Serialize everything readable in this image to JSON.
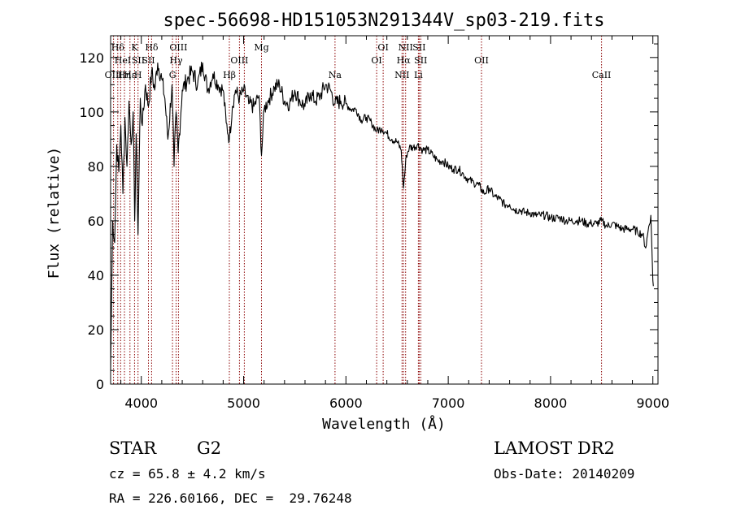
{
  "chart_data": {
    "type": "line",
    "title": "spec-56698-HD151053N291344V_sp03-219.fits",
    "xlabel": "Wavelength (Å)",
    "ylabel": "Flux (relative)",
    "xlim": [
      3700,
      9050
    ],
    "ylim": [
      0,
      128
    ],
    "x_ticks": [
      4000,
      5000,
      6000,
      7000,
      8000,
      9000
    ],
    "y_ticks": [
      0,
      20,
      40,
      60,
      80,
      100,
      120
    ],
    "grid": false,
    "line_color": "#000000",
    "marker_color": "#8b0000",
    "series": [
      {
        "x": [
          3700,
          3720,
          3740,
          3760,
          3780,
          3800,
          3820,
          3840,
          3860,
          3880,
          3900,
          3920,
          3935,
          3950,
          3968,
          3990,
          4010,
          4040,
          4070,
          4101,
          4130,
          4160,
          4200,
          4230,
          4260,
          4300,
          4320,
          4340,
          4360,
          4400,
          4450,
          4500,
          4550,
          4600,
          4650,
          4700,
          4750,
          4800,
          4830,
          4861,
          4890,
          4920,
          4960,
          5000,
          5050,
          5100,
          5150,
          5175,
          5200,
          5250,
          5300,
          5350,
          5400,
          5450,
          5500,
          5550,
          5600,
          5650,
          5700,
          5750,
          5800,
          5850,
          5893,
          5950,
          6000,
          6050,
          6100,
          6150,
          6200,
          6250,
          6300,
          6350,
          6400,
          6450,
          6500,
          6540,
          6563,
          6590,
          6620,
          6660,
          6700,
          6750,
          6800,
          6850,
          6900,
          6950,
          7000,
          7050,
          7100,
          7150,
          7200,
          7250,
          7300,
          7350,
          7400,
          7450,
          7500,
          7550,
          7600,
          7650,
          7700,
          7750,
          7800,
          7850,
          7900,
          7950,
          8000,
          8050,
          8100,
          8150,
          8200,
          8250,
          8300,
          8350,
          8400,
          8450,
          8500,
          8550,
          8600,
          8650,
          8700,
          8750,
          8800,
          8850,
          8900,
          8930,
          8960,
          8980,
          9000,
          9005
        ],
        "y": [
          5,
          60,
          52,
          88,
          78,
          95,
          70,
          98,
          80,
          104,
          88,
          100,
          60,
          92,
          55,
          105,
          95,
          110,
          102,
          115,
          108,
          118,
          112,
          105,
          90,
          110,
          80,
          100,
          85,
          108,
          112,
          115,
          110,
          118,
          108,
          114,
          110,
          108,
          96,
          90,
          102,
          108,
          105,
          108,
          103,
          102,
          106,
          84,
          101,
          105,
          109,
          110,
          104,
          103,
          108,
          104,
          102,
          107,
          104,
          106,
          110,
          108,
          103,
          104,
          103,
          101,
          101,
          97,
          98,
          96,
          93,
          94,
          92,
          90,
          89,
          86,
          72,
          84,
          87,
          87,
          88,
          86,
          86,
          84,
          82,
          82,
          80,
          79,
          79,
          77,
          75,
          74,
          73,
          70,
          72,
          69,
          68,
          66,
          66,
          64,
          64,
          63,
          63,
          62,
          62,
          62,
          61,
          61,
          61,
          60,
          60,
          60,
          60,
          59,
          59,
          59,
          60,
          58,
          59,
          58,
          57,
          57,
          57,
          56,
          55,
          50,
          58,
          62,
          38,
          36
        ]
      }
    ],
    "line_markers": [
      {
        "label": "Hδ",
        "wl": 3770,
        "row": 0
      },
      {
        "label": "HeI",
        "wl": 3819,
        "row": 1
      },
      {
        "label": "OIII",
        "wl": 3729,
        "row": 2
      },
      {
        "label": "Hη",
        "wl": 3835,
        "row": 2
      },
      {
        "label": "K",
        "wl": 3934,
        "row": 0
      },
      {
        "label": "SII",
        "wl": 3970,
        "row": 1
      },
      {
        "label": "Hε",
        "wl": 3889,
        "row": 2
      },
      {
        "label": "Hδ",
        "wl": 4101,
        "row": 0
      },
      {
        "label": "SII",
        "wl": 4070,
        "row": 1
      },
      {
        "label": "H",
        "wl": 3968,
        "row": 2
      },
      {
        "label": "OIII",
        "wl": 4363,
        "row": 0
      },
      {
        "label": "Hγ",
        "wl": 4340,
        "row": 1
      },
      {
        "label": "G",
        "wl": 4305,
        "row": 2
      },
      {
        "label": "OIII",
        "wl": 4959,
        "row": 1
      },
      {
        "label": "Hβ",
        "wl": 4861,
        "row": 2
      },
      {
        "label": "Mg",
        "wl": 5175,
        "row": 0
      },
      {
        "label": "Na",
        "wl": 5893,
        "row": 2
      },
      {
        "label": "OI",
        "wl": 6364,
        "row": 0
      },
      {
        "label": "OI",
        "wl": 6300,
        "row": 1
      },
      {
        "label": "NII",
        "wl": 6583,
        "row": 0
      },
      {
        "label": "SII",
        "wl": 6716,
        "row": 0
      },
      {
        "label": "Hα",
        "wl": 6563,
        "row": 1
      },
      {
        "label": "SII",
        "wl": 6731,
        "row": 1
      },
      {
        "label": "NII",
        "wl": 6548,
        "row": 2
      },
      {
        "label": "Li",
        "wl": 6708,
        "row": 2
      },
      {
        "label": "OII",
        "wl": 7325,
        "row": 1
      },
      {
        "label": "CaII",
        "wl": 8498,
        "row": 2
      }
    ],
    "marker_lines_wl": [
      3729,
      3770,
      3798,
      3835,
      3889,
      3934,
      3968,
      4070,
      4101,
      4305,
      4340,
      4363,
      4861,
      4959,
      5007,
      5175,
      5893,
      6300,
      6364,
      6548,
      6563,
      6583,
      6708,
      6716,
      6731,
      7325,
      8498
    ]
  },
  "info": {
    "object_class": "STAR",
    "subclass": "G2",
    "survey": "LAMOST DR2",
    "cz_line": "cz = 65.8 ± 4.2 km/s",
    "obs_date": "Obs-Date: 20140209",
    "coords": "RA = 226.60166, DEC =  29.76248"
  }
}
